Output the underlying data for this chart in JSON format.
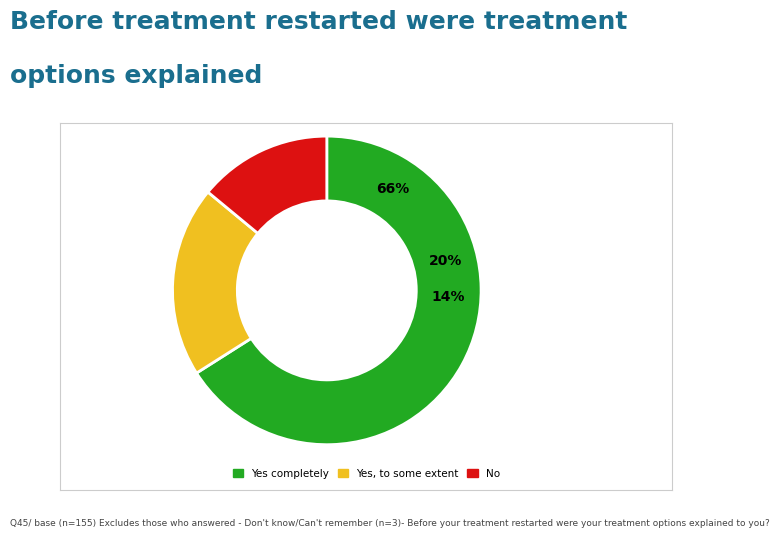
{
  "title_line1": "Before treatment restarted were treatment",
  "title_line2": "options explained",
  "title_color": "#1a6e8e",
  "title_fontsize": 18,
  "background_color": "#ffffff",
  "chart_bg_color": "#ffffff",
  "slices": [
    66,
    20,
    14
  ],
  "slice_labels": [
    "66%",
    "20%",
    "14%"
  ],
  "slice_colors": [
    "#22aa22",
    "#f0c020",
    "#dd1111"
  ],
  "legend_labels": [
    "Yes completely",
    "Yes, to some extent",
    "No"
  ],
  "footnote": "Q45/ base (n=155) Excludes those who answered - Don't know/Can't remember (n=3)- Before your treatment restarted were your treatment options explained to you?",
  "footnote_fontsize": 6.5,
  "label_fontsize": 10,
  "label_color": "#000000",
  "label_fontweight": "bold"
}
